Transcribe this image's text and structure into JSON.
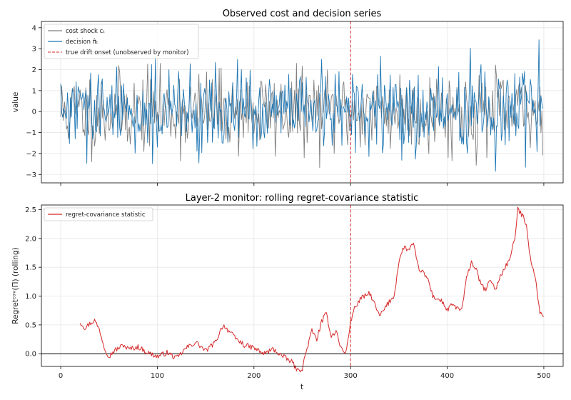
{
  "chart_data": [
    {
      "type": "line",
      "title": "Observed cost and decision series",
      "xlabel": "",
      "ylabel": "value",
      "xlim": [
        -20,
        520
      ],
      "ylim": [
        -3.4,
        4.3
      ],
      "x_ticks": [
        0,
        100,
        200,
        300,
        400,
        500
      ],
      "y_ticks": [
        -3,
        -2,
        -1,
        0,
        1,
        2,
        3,
        4
      ],
      "y_tick_labels": [
        "−3",
        "−2",
        "−1",
        "0",
        "1",
        "2",
        "3",
        "4"
      ],
      "grid": true,
      "legend_position": "top-left",
      "series": [
        {
          "name": "cost shock cₜ",
          "color": "#7f7f7f",
          "n": 500,
          "seed": 11,
          "sd": 0.95,
          "min": -2.9,
          "max": 2.3
        },
        {
          "name": "decision π̂ₜ",
          "color": "#1f77b4",
          "n": 500,
          "seed": 29,
          "sd": 0.95,
          "min": -3.0,
          "max": 4.0
        }
      ],
      "annotations": [
        {
          "type": "vline",
          "x": 300,
          "label": "true drift onset (unobserved by monitor)",
          "color": "#d62728",
          "style": "dashed"
        }
      ]
    },
    {
      "type": "line",
      "title": "Layer-2 monitor: rolling regret-covariance statistic",
      "xlabel": "t",
      "ylabel": "Regretᶜᵒᵛ(Π) (rolling)",
      "xlim": [
        -20,
        520
      ],
      "ylim": [
        -0.22,
        2.58
      ],
      "x_ticks": [
        0,
        100,
        200,
        300,
        400,
        500
      ],
      "y_ticks": [
        0.0,
        0.5,
        1.0,
        1.5,
        2.0,
        2.5
      ],
      "y_tick_labels": [
        "0.0",
        "0.5",
        "1.0",
        "1.5",
        "2.0",
        "2.5"
      ],
      "grid": true,
      "legend_position": "top-left",
      "series": [
        {
          "name": "regret-covariance statistic",
          "color": "#d62728",
          "x": [
            20,
            25,
            30,
            35,
            40,
            45,
            50,
            55,
            60,
            65,
            70,
            80,
            90,
            100,
            110,
            120,
            130,
            140,
            150,
            160,
            168,
            175,
            180,
            190,
            200,
            210,
            220,
            230,
            240,
            245,
            250,
            255,
            260,
            265,
            270,
            275,
            280,
            285,
            290,
            295,
            300,
            303,
            310,
            320,
            330,
            340,
            345,
            350,
            355,
            360,
            365,
            370,
            375,
            380,
            385,
            390,
            395,
            400,
            405,
            410,
            415,
            420,
            425,
            430,
            435,
            440,
            445,
            450,
            455,
            460,
            465,
            470,
            473,
            478,
            482,
            485,
            488,
            492,
            496,
            500
          ],
          "y": [
            0.55,
            0.45,
            0.52,
            0.58,
            0.42,
            0.12,
            -0.05,
            0.05,
            0.1,
            0.15,
            0.08,
            0.12,
            0.02,
            -0.05,
            0.02,
            -0.08,
            0.1,
            0.2,
            0.05,
            0.2,
            0.5,
            0.38,
            0.28,
            0.15,
            0.1,
            0.0,
            0.08,
            -0.05,
            -0.15,
            -0.3,
            -0.25,
            0.1,
            0.4,
            0.25,
            0.55,
            0.7,
            0.3,
            0.4,
            0.1,
            0.0,
            0.55,
            0.75,
            0.95,
            1.05,
            0.65,
            0.9,
            1.0,
            1.6,
            1.85,
            1.8,
            1.9,
            1.5,
            1.4,
            1.3,
            1.0,
            0.95,
            0.9,
            0.75,
            0.85,
            0.8,
            0.75,
            1.3,
            1.6,
            1.45,
            1.2,
            1.1,
            1.3,
            1.1,
            1.35,
            1.5,
            1.65,
            2.0,
            2.5,
            2.4,
            2.25,
            1.8,
            1.5,
            1.25,
            0.7,
            0.65
          ]
        }
      ],
      "annotations": [
        {
          "type": "vline",
          "x": 300,
          "color": "#d62728",
          "style": "dashed"
        },
        {
          "type": "hline",
          "y": 0.0,
          "color": "#000000",
          "style": "solid"
        }
      ]
    }
  ]
}
